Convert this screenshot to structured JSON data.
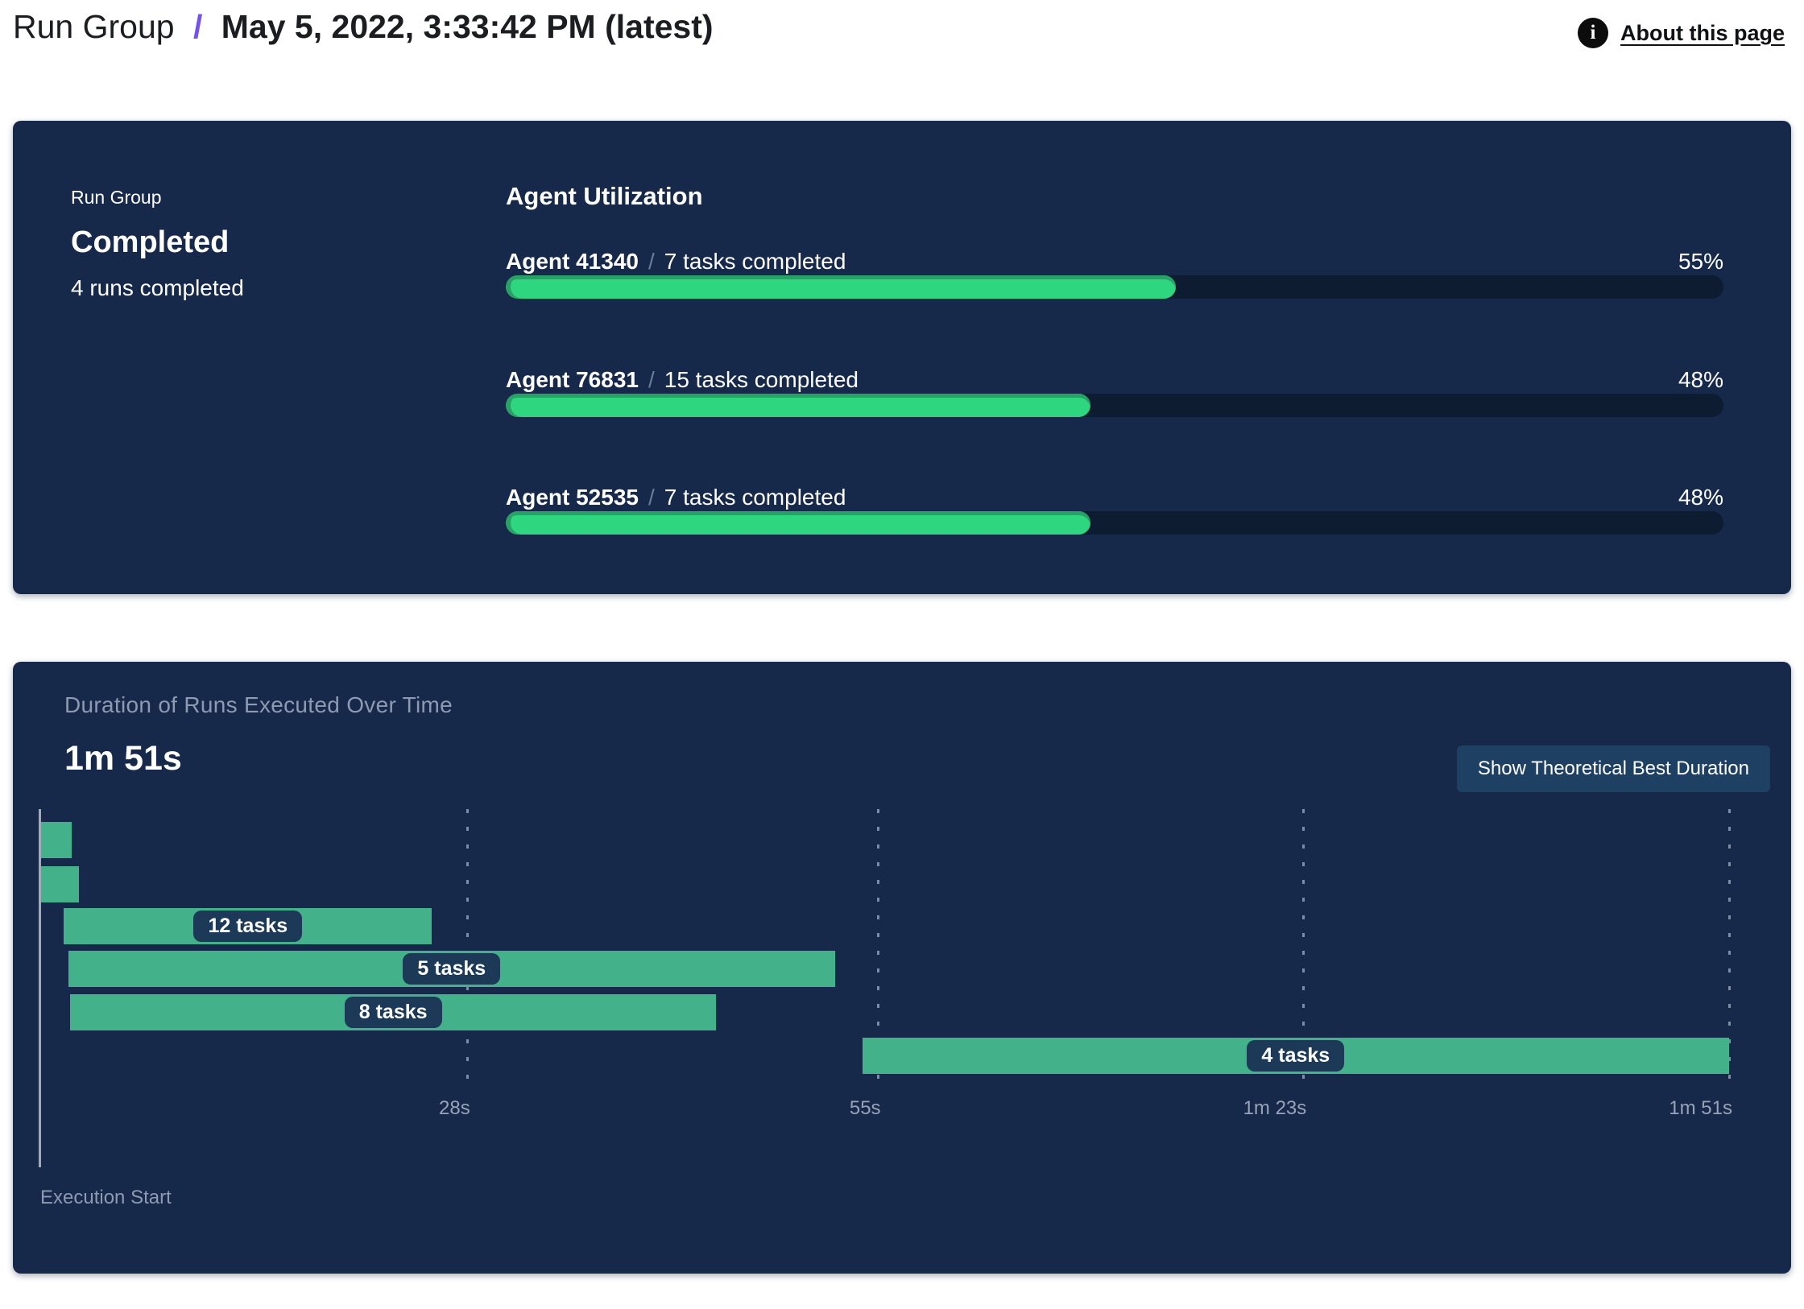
{
  "theme": {
    "panel_bg": "#16294b",
    "track_bg": "#0d1c30",
    "progress_green": "#2ed67f",
    "progress_rim": "#29a066",
    "gantt_green": "#43b18a",
    "pill_bg": "#1c3a57",
    "muted_text": "#8d9ab0",
    "axis_text": "#97a3b6",
    "accent_purple": "#7450f0",
    "button_bg": "#1e4063"
  },
  "header": {
    "breadcrumb_root": "Run Group",
    "breadcrumb_separator": "/",
    "breadcrumb_current": "May 5, 2022, 3:33:42 PM (latest)",
    "info_icon_glyph": "i",
    "about_link": "About this page"
  },
  "status_panel": {
    "label": "Run Group",
    "status": "Completed",
    "runs_summary": "4 runs completed",
    "section_title": "Agent Utilization",
    "separator": "/",
    "agents": [
      {
        "name": "Agent 41340",
        "tasks": "7 tasks completed",
        "percent": 55,
        "percent_label": "55%"
      },
      {
        "name": "Agent 76831",
        "tasks": "15 tasks completed",
        "percent": 48,
        "percent_label": "48%"
      },
      {
        "name": "Agent 52535",
        "tasks": "7 tasks completed",
        "percent": 48,
        "percent_label": "48%"
      }
    ]
  },
  "duration_panel": {
    "title": "Duration of Runs Executed Over Time",
    "total_duration": "1m 51s",
    "button_label": "Show Theoretical Best Duration",
    "axis_label": "Execution Start"
  },
  "chart_data": {
    "type": "gantt",
    "title": "Duration of Runs Executed Over Time",
    "total_duration_label": "1m 51s",
    "x_axis": {
      "label": "Execution Start",
      "range_s": [
        0,
        111
      ],
      "ticks": [
        {
          "s": 28,
          "label": "28s"
        },
        {
          "s": 55,
          "label": "55s"
        },
        {
          "s": 83,
          "label": "1m 23s"
        },
        {
          "s": 111,
          "label": "1m 51s"
        }
      ],
      "grid": "dashed-vertical"
    },
    "runs": [
      {
        "row": 1,
        "start_s": 0,
        "end_s": 2.0,
        "label": ""
      },
      {
        "row": 2,
        "start_s": 0,
        "end_s": 2.5,
        "label": ""
      },
      {
        "row": 3,
        "start_s": 1.5,
        "end_s": 25.7,
        "label": "12 tasks"
      },
      {
        "row": 4,
        "start_s": 1.8,
        "end_s": 52.2,
        "label": "5 tasks"
      },
      {
        "row": 5,
        "start_s": 1.9,
        "end_s": 44.4,
        "label": "8 tasks"
      },
      {
        "row": 6,
        "start_s": 54.0,
        "end_s": 111.0,
        "label": "4 tasks"
      }
    ]
  }
}
